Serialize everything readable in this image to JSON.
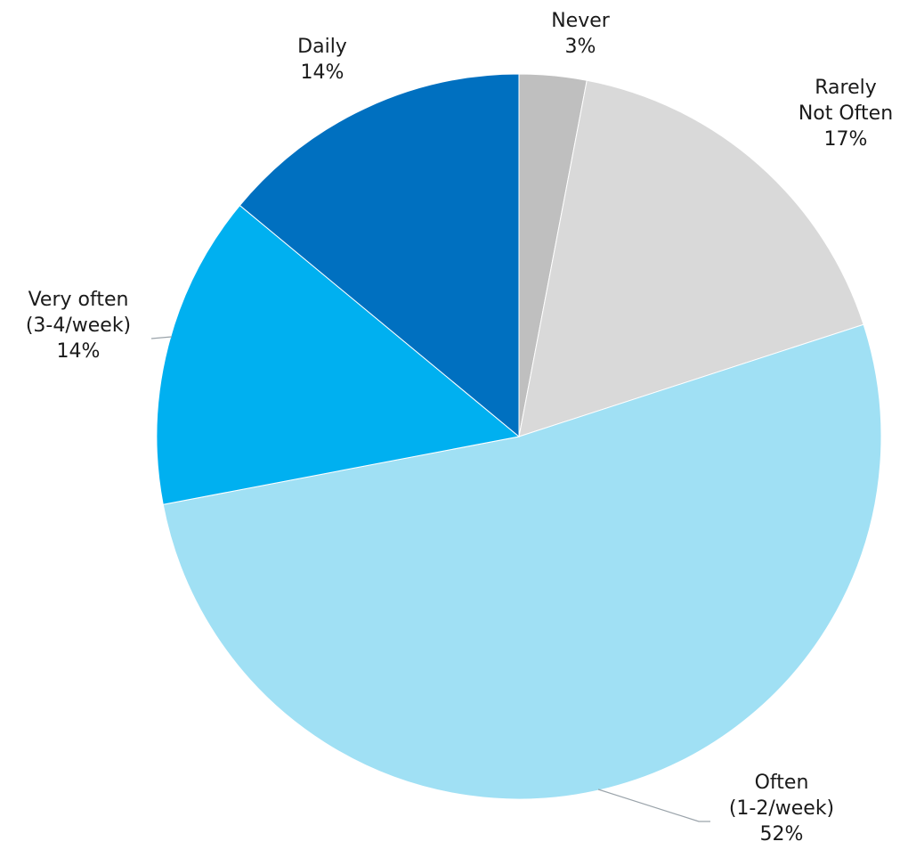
{
  "chart_data": {
    "type": "pie",
    "title": "",
    "slices": [
      {
        "label_lines": [
          "Never"
        ],
        "value": 3,
        "value_label": "3%",
        "color": "#bfbfbf"
      },
      {
        "label_lines": [
          "Rarely",
          "Not Often"
        ],
        "value": 17,
        "value_label": "17%",
        "color": "#d9d9d9"
      },
      {
        "label_lines": [
          "Often",
          "(1-2/week)"
        ],
        "value": 52,
        "value_label": "52%",
        "color": "#a0e0f4"
      },
      {
        "label_lines": [
          "Very often",
          "(3-4/week)"
        ],
        "value": 14,
        "value_label": "14%",
        "color": "#00b0f0"
      },
      {
        "label_lines": [
          "Daily"
        ],
        "value": 14,
        "value_label": "14%",
        "color": "#0070c0"
      }
    ],
    "start_angle_deg": 0,
    "direction": "clockwise",
    "legend": "none"
  }
}
